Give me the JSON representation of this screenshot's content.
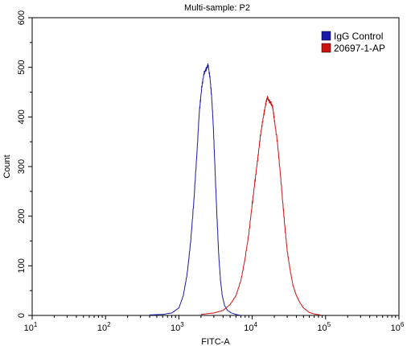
{
  "chart_data": {
    "type": "line",
    "title": "Multi-sample: P2",
    "xlabel": "FITC-A",
    "ylabel": "Count",
    "xscale": "log",
    "xlim": [
      10,
      1000000
    ],
    "ylim": [
      0,
      600
    ],
    "x_ticks": [
      {
        "value": 10,
        "base": "10",
        "exp": "1"
      },
      {
        "value": 100,
        "base": "10",
        "exp": "2"
      },
      {
        "value": 1000,
        "base": "10",
        "exp": "3"
      },
      {
        "value": 10000,
        "base": "10",
        "exp": "4"
      },
      {
        "value": 100000,
        "base": "10",
        "exp": "5"
      },
      {
        "value": 1000000,
        "base": "10",
        "exp": "6"
      }
    ],
    "y_ticks": [
      "0",
      "100",
      "200",
      "300",
      "400",
      "500",
      "600"
    ],
    "legend_position": "top-right",
    "grid": false,
    "series": [
      {
        "name": "IgG Control",
        "color": "#1a1aa8",
        "x": [
          400,
          600,
          800,
          1000,
          1150,
          1300,
          1450,
          1600,
          1750,
          1900,
          2050,
          2200,
          2350,
          2500,
          2650,
          2800,
          2950,
          3100,
          3300,
          3500,
          3700,
          3900,
          4200,
          4600,
          5200,
          6000,
          7000
        ],
        "y": [
          1,
          2,
          5,
          15,
          40,
          85,
          150,
          230,
          320,
          410,
          460,
          488,
          496,
          505,
          480,
          440,
          380,
          300,
          200,
          120,
          70,
          40,
          20,
          10,
          5,
          2,
          0
        ]
      },
      {
        "name": "20697-1-AP",
        "color": "#cc1111",
        "x": [
          2000,
          3000,
          4000,
          5000,
          6000,
          7000,
          8000,
          9000,
          10000,
          11000,
          12000,
          13000,
          14000,
          15000,
          16000,
          17000,
          18000,
          19000,
          20000,
          22000,
          24000,
          26000,
          28000,
          30000,
          33000,
          36000,
          40000,
          45000,
          50000,
          60000,
          70000,
          85000
        ],
        "y": [
          2,
          5,
          10,
          22,
          40,
          70,
          115,
          165,
          225,
          275,
          320,
          365,
          395,
          420,
          440,
          432,
          428,
          420,
          395,
          350,
          290,
          230,
          175,
          130,
          90,
          60,
          40,
          25,
          15,
          6,
          3,
          1
        ]
      }
    ]
  }
}
